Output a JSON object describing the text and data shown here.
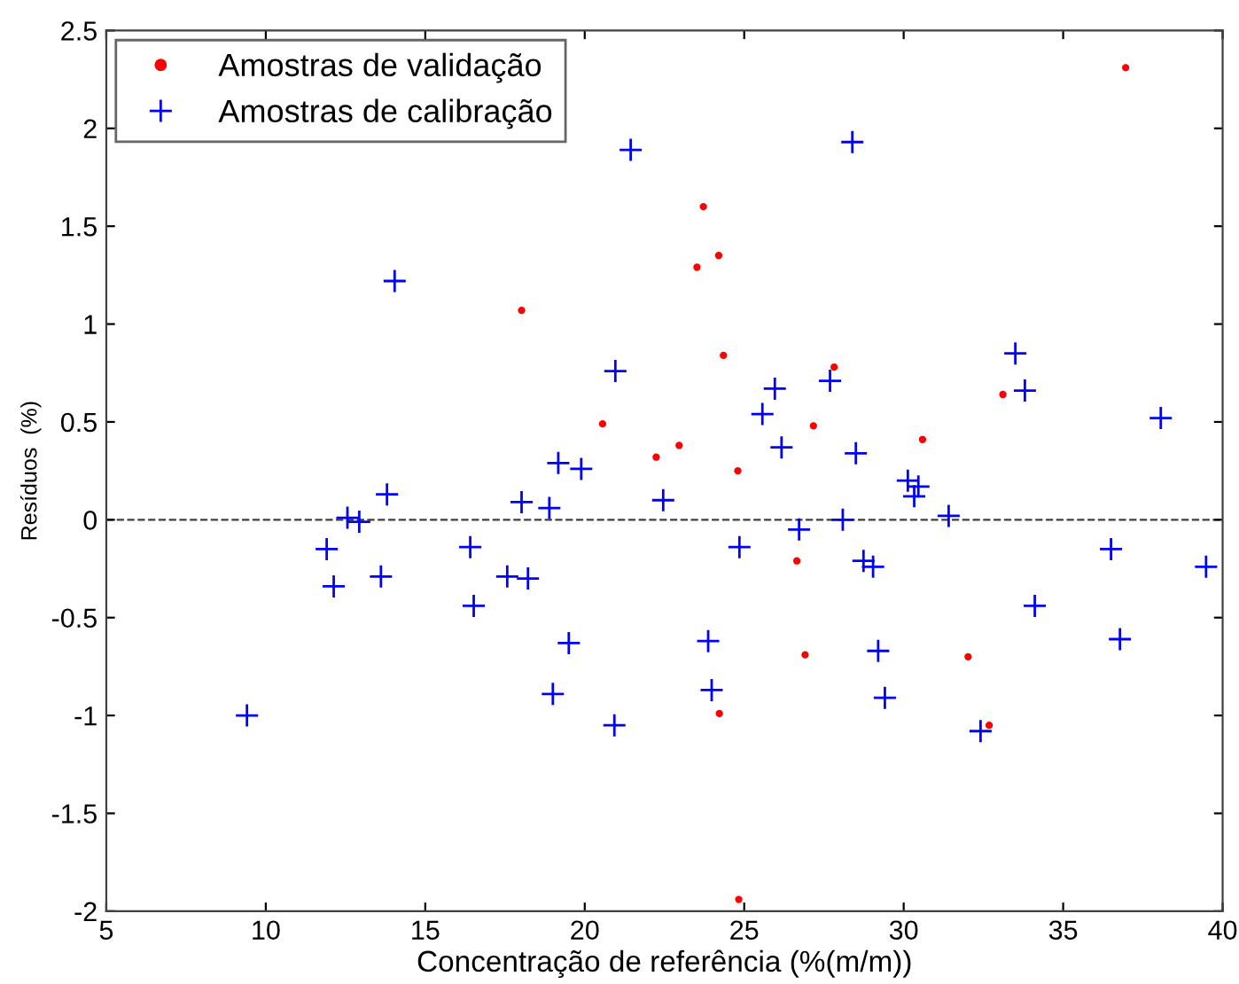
{
  "chart_data": {
    "type": "scatter",
    "xlabel": "Concentração de referência (%(m/m))",
    "ylabel": "Resíduos  (%)",
    "xlim": [
      5,
      40
    ],
    "xticks": [
      5,
      10,
      15,
      20,
      25,
      30,
      35,
      40
    ],
    "ylim": [
      -2,
      2.5
    ],
    "yticks": [
      -2,
      -1.5,
      -1,
      -0.5,
      0,
      0.5,
      1,
      1.5,
      2,
      2.5
    ],
    "grid": false,
    "legend": "top left",
    "ref_lines": [
      {
        "axis": "y",
        "value": 0,
        "color": "#404040",
        "line_style": "dashed"
      }
    ],
    "series": [
      {
        "name": "Amostras de validação",
        "color": "#ff0000",
        "marker": "circle",
        "x": [
          18.02,
          20.56,
          22.24,
          22.96,
          36.96,
          23.72,
          24.2,
          23.52,
          24.35,
          27.82,
          33.11,
          27.17,
          30.59,
          24.8,
          26.65,
          26.91,
          32.02,
          24.22,
          32.68,
          24.83
        ],
        "values": [
          1.07,
          0.49,
          0.32,
          0.38,
          2.31,
          1.6,
          1.35,
          1.29,
          0.84,
          0.78,
          0.64,
          0.48,
          0.41,
          0.25,
          -0.21,
          -0.69,
          -0.7,
          -0.99,
          -1.05,
          -1.94
        ]
      },
      {
        "name": "Amostras de calibração",
        "color": "#0000ff",
        "marker": "cross",
        "x": [
          21.44,
          14.04,
          20.96,
          19.17,
          19.89,
          28.39,
          33.5,
          33.8,
          25.96,
          27.69,
          25.57,
          26.17,
          28.5,
          38.06,
          13.8,
          18.02,
          18.89,
          22.46,
          12.56,
          12.93,
          11.91,
          16.41,
          12.13,
          13.61,
          17.57,
          18.22,
          16.52,
          19.5,
          19.0,
          9.41,
          20.93,
          30.13,
          30.46,
          30.33,
          31.41,
          28.09,
          26.72,
          24.85,
          36.5,
          39.48,
          28.74,
          29.04,
          34.11,
          36.78,
          23.87,
          29.2,
          23.98,
          29.41,
          32.41
        ],
        "values": [
          1.89,
          1.22,
          0.76,
          0.29,
          0.26,
          1.93,
          0.85,
          0.66,
          0.67,
          0.71,
          0.54,
          0.37,
          0.34,
          0.52,
          0.13,
          0.09,
          0.06,
          0.1,
          0.01,
          -0.01,
          -0.15,
          -0.14,
          -0.34,
          -0.29,
          -0.29,
          -0.3,
          -0.44,
          -0.63,
          -0.89,
          -1.0,
          -1.05,
          0.2,
          0.17,
          0.12,
          0.02,
          0.0,
          -0.05,
          -0.14,
          -0.15,
          -0.24,
          -0.21,
          -0.24,
          -0.44,
          -0.61,
          -0.62,
          -0.67,
          -0.87,
          -0.91,
          -1.08
        ]
      }
    ]
  }
}
